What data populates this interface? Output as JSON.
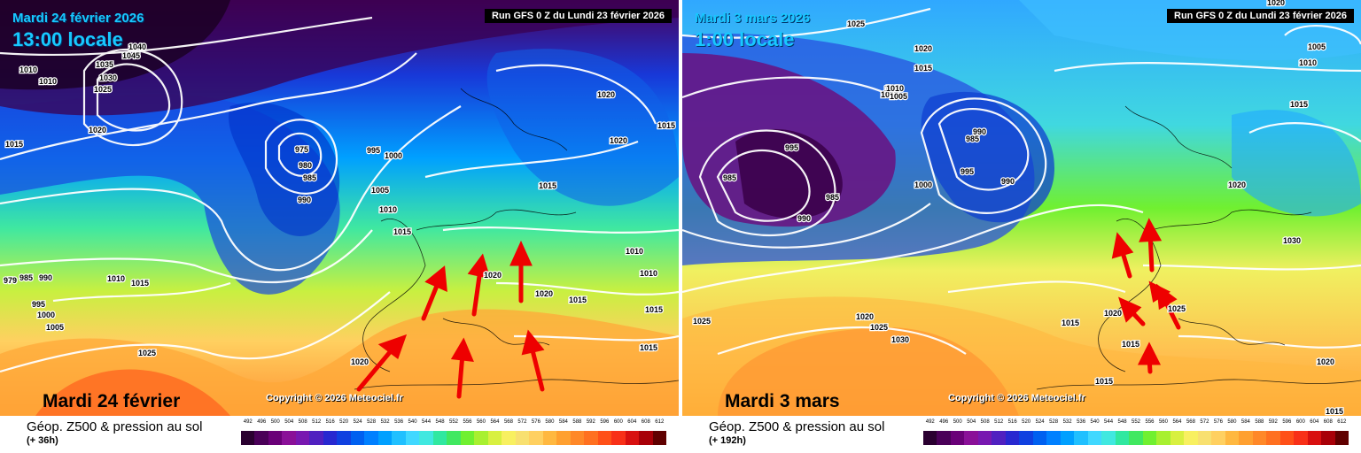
{
  "panels": [
    {
      "date_line": "Mardi 24 février 2026",
      "time_line": "13:00 locale",
      "run": "Run GFS 0 Z du Lundi 23 février 2026",
      "big_date": "Mardi 24 février",
      "copyright": "Copyright © 2026 Meteociel.fr",
      "field": "Géop. Z500 & pression au sol",
      "lead": "(+ 36h)",
      "isobars": [
        "1010",
        "1010",
        "1015",
        "1045",
        "1040",
        "1035",
        "1030",
        "1025",
        "1020",
        "975",
        "980",
        "985",
        "990",
        "995",
        "1000",
        "1005",
        "1010",
        "1015",
        "1020",
        "1015",
        "1020",
        "1010",
        "1020",
        "1015",
        "1015",
        "1015",
        "1020",
        "1025",
        "1010",
        "1015",
        "995",
        "1000",
        "1005",
        "979",
        "985",
        "990",
        "1020",
        "1015",
        "1010"
      ]
    },
    {
      "date_line": "Mardi 3 mars 2026",
      "time_line": "1:00 locale",
      "run": "Run GFS 0 Z du Lundi 23 février 2026",
      "big_date": "Mardi 3 mars",
      "copyright": "Copyright © 2026 Meteociel.fr",
      "field": "Géop. Z500 & pression au sol",
      "lead": "(+ 192h)",
      "isobars": [
        "1025",
        "1020",
        "1015",
        "1010",
        "1005",
        "995",
        "985",
        "985",
        "990",
        "990",
        "985",
        "995",
        "990",
        "1000",
        "1005",
        "1010",
        "1020",
        "1005",
        "1010",
        "1015",
        "1020",
        "1030",
        "1025",
        "1020",
        "1025",
        "1030",
        "1015",
        "1020",
        "1015",
        "1015",
        "1025",
        "1020",
        "1015"
      ]
    }
  ],
  "scale": {
    "labels": [
      "492",
      "496",
      "500",
      "504",
      "508",
      "512",
      "516",
      "520",
      "524",
      "528",
      "532",
      "536",
      "540",
      "544",
      "548",
      "552",
      "556",
      "560",
      "564",
      "568",
      "572",
      "576",
      "580",
      "584",
      "588",
      "592",
      "596",
      "600",
      "604",
      "608",
      "612"
    ],
    "colors": [
      "#2a0030",
      "#4a0058",
      "#6a0078",
      "#8a1098",
      "#7818b0",
      "#5020c0",
      "#2828d0",
      "#1040e0",
      "#0060f0",
      "#0080ff",
      "#00a0ff",
      "#20c0ff",
      "#40d8ff",
      "#40e8e0",
      "#30e8a0",
      "#40e860",
      "#70f030",
      "#a8f030",
      "#d8f040",
      "#f8f060",
      "#f8e070",
      "#ffd060",
      "#ffb840",
      "#ffa030",
      "#ff8828",
      "#ff7020",
      "#ff5018",
      "#f83018",
      "#d81010",
      "#a80008",
      "#600000"
    ]
  }
}
